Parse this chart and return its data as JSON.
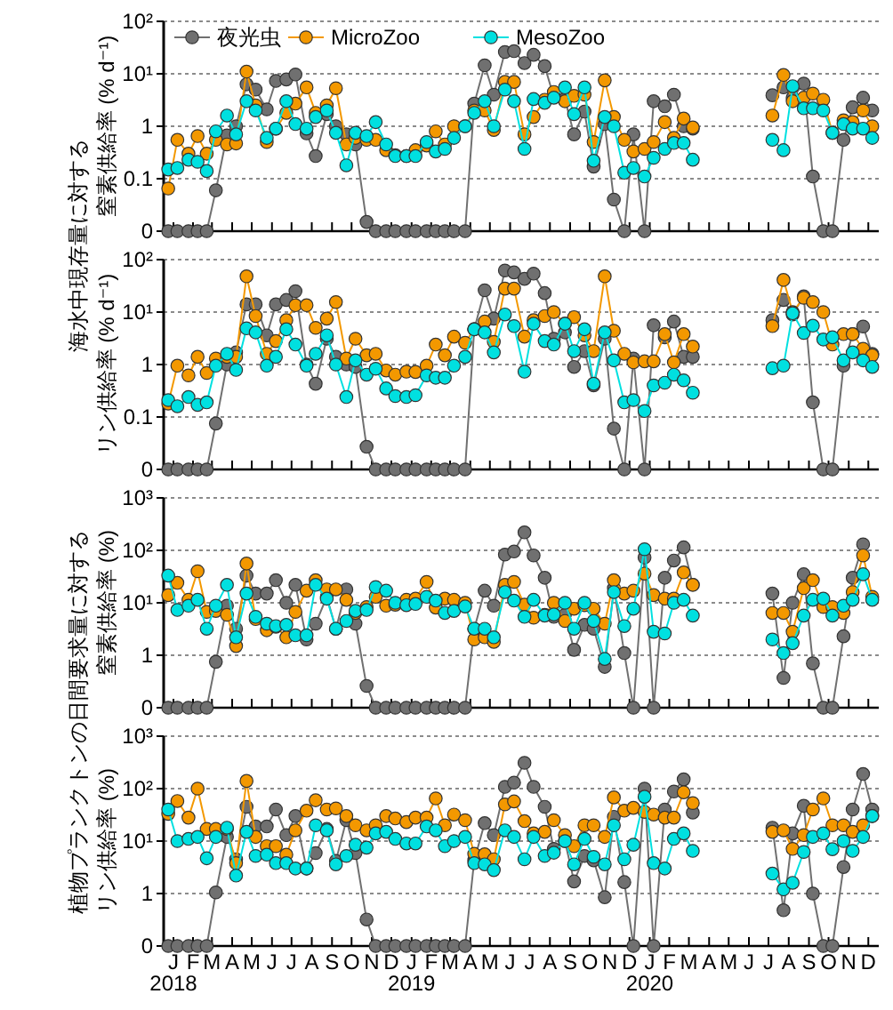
{
  "chart_data": [
    {
      "type": "line",
      "ylabel": "窒素供給率 (% d⁻¹)",
      "annotations": [
        "海水中現存量に対する"
      ],
      "log": true,
      "grid": "y",
      "legend": "top left",
      "marker": "circle",
      "line_style": "solid",
      "tick_labels": "y",
      "xlim": [
        "2018-01-01",
        "2021-01-01"
      ],
      "ylim": [
        0.01,
        100
      ],
      "yticks": [
        {
          "value": 0.01,
          "label": "0"
        },
        {
          "value": 0.1,
          "label": "0.1"
        },
        {
          "value": 1,
          "label": "1"
        },
        {
          "value": 10,
          "label": "10¹"
        },
        {
          "value": 100,
          "label": "10²"
        }
      ],
      "xticks": [
        {
          "value": "2018-01-16",
          "label": null
        },
        {
          "value": "2018-02-15",
          "label": null
        },
        {
          "value": "2018-03-16",
          "label": null
        },
        {
          "value": "2018-04-16",
          "label": null
        },
        {
          "value": "2018-05-16",
          "label": null
        },
        {
          "value": "2018-06-16",
          "label": null
        },
        {
          "value": "2018-07-16",
          "label": null
        },
        {
          "value": "2018-08-16",
          "label": null
        },
        {
          "value": "2018-09-16",
          "label": null
        },
        {
          "value": "2018-10-16",
          "label": null
        },
        {
          "value": "2018-11-16",
          "label": null
        },
        {
          "value": "2018-12-16",
          "label": null
        },
        {
          "value": "2019-01-16",
          "label": null
        },
        {
          "value": "2019-02-15",
          "label": null
        },
        {
          "value": "2019-03-16",
          "label": null
        },
        {
          "value": "2019-04-16",
          "label": null
        },
        {
          "value": "2019-05-16",
          "label": null
        },
        {
          "value": "2019-06-16",
          "label": null
        },
        {
          "value": "2019-07-16",
          "label": null
        },
        {
          "value": "2019-08-16",
          "label": null
        },
        {
          "value": "2019-09-16",
          "label": null
        },
        {
          "value": "2019-10-16",
          "label": null
        },
        {
          "value": "2019-11-16",
          "label": null
        },
        {
          "value": "2019-12-16",
          "label": null
        },
        {
          "value": "2020-01-16",
          "label": null
        },
        {
          "value": "2020-02-15",
          "label": null
        },
        {
          "value": "2020-03-16",
          "label": null
        },
        {
          "value": "2020-04-16",
          "label": null
        },
        {
          "value": "2020-05-16",
          "label": null
        },
        {
          "value": "2020-06-16",
          "label": null
        },
        {
          "value": "2020-07-16",
          "label": null
        },
        {
          "value": "2020-08-16",
          "label": null
        },
        {
          "value": "2020-09-16",
          "label": null
        },
        {
          "value": "2020-10-16",
          "label": null
        },
        {
          "value": "2020-11-16",
          "label": null
        },
        {
          "value": "2020-12-16",
          "label": null
        }
      ],
      "x": [
        "2018-01-08",
        "2018-01-22",
        "2018-02-08",
        "2018-02-22",
        "2018-03-08",
        "2018-03-22",
        "2018-04-08",
        "2018-04-22",
        "2018-05-08",
        "2018-05-22",
        "2018-06-08",
        "2018-06-22",
        "2018-07-08",
        "2018-07-22",
        "2018-08-08",
        "2018-08-22",
        "2018-09-08",
        "2018-09-22",
        "2018-10-08",
        "2018-10-22",
        "2018-11-08",
        "2018-11-22",
        "2018-12-08",
        "2018-12-22",
        "2019-01-08",
        "2019-01-22",
        "2019-02-08",
        "2019-02-22",
        "2019-03-08",
        "2019-03-22",
        "2019-04-08",
        "2019-04-22",
        "2019-05-08",
        "2019-05-22",
        "2019-06-08",
        "2019-06-22",
        "2019-07-08",
        "2019-07-22",
        "2019-08-08",
        "2019-08-22",
        "2019-09-08",
        "2019-09-22",
        "2019-10-08",
        "2019-10-22",
        "2019-11-08",
        "2019-11-22",
        "2019-12-08",
        "2019-12-22",
        "2020-01-08",
        "2020-01-22",
        "2020-02-08",
        "2020-02-22",
        "2020-03-08",
        "2020-03-22",
        "2020-05-15",
        "2020-07-22",
        "2020-08-08",
        "2020-08-22",
        "2020-09-08",
        "2020-09-22",
        "2020-10-08",
        "2020-10-22",
        "2020-11-08",
        "2020-11-22",
        "2020-12-08",
        "2020-12-22"
      ],
      "series": [
        {
          "name": "夜光虫",
          "color": "#707070",
          "values": [
            0.01,
            0.01,
            0.01,
            0.01,
            0.01,
            0.06,
            0.67,
            1,
            6.3,
            5,
            2.1,
            7.3,
            7.8,
            9.7,
            0.73,
            0.27,
            1.7,
            1,
            0.7,
            0.45,
            0.015,
            0.01,
            0.01,
            0.01,
            0.01,
            0.01,
            0.01,
            0.01,
            0.01,
            0.01,
            0.01,
            2.7,
            14.5,
            4,
            26,
            27,
            16,
            23,
            14,
            3.6,
            3.3,
            0.7,
            1.9,
            0.17,
            1.1,
            0.04,
            0.01,
            0.7,
            0.01,
            3,
            2.4,
            4,
            1,
            0.9,
            null,
            3.9,
            5.5,
            3.5,
            6.5,
            0.11,
            0.01,
            0.01,
            0.55,
            2.3,
            3.5,
            2
          ]
        },
        {
          "name": "MicroZoo",
          "color": "#f39800",
          "values": [
            0.065,
            0.55,
            0.3,
            0.65,
            0.3,
            0.55,
            0.45,
            0.47,
            11,
            2.5,
            0.5,
            0.9,
            1.8,
            2.7,
            5.5,
            1.8,
            2.5,
            5.3,
            0.45,
            0.6,
            0.55,
            0.55,
            0.35,
            0.28,
            0.27,
            0.35,
            0.43,
            0.8,
            0.45,
            1,
            1,
            2,
            2,
            0.85,
            7,
            7,
            0.7,
            1.5,
            3.2,
            4.5,
            3,
            3.8,
            4,
            0.5,
            7.5,
            1.5,
            0.55,
            0.33,
            0.37,
            0.5,
            1.2,
            0.6,
            1.4,
            0.95,
            null,
            1.6,
            9.5,
            3,
            3.5,
            4.2,
            3.2,
            0.75,
            1.3,
            1.2,
            2,
            1
          ]
        },
        {
          "name": "MesoZoo",
          "color": "#00e0e0",
          "values": [
            0.15,
            0.16,
            0.23,
            0.21,
            0.14,
            0.8,
            1.6,
            0.7,
            3,
            2,
            0.6,
            0.9,
            3,
            1.1,
            0.9,
            1.5,
            2,
            0.75,
            0.18,
            0.75,
            0.65,
            1.2,
            0.45,
            0.27,
            0.27,
            0.27,
            0.5,
            0.33,
            0.37,
            0.6,
            1,
            1.8,
            3,
            1,
            5,
            3,
            0.37,
            3.3,
            2.8,
            3.5,
            5.5,
            1.7,
            5.5,
            0.22,
            1.5,
            1,
            0.13,
            0.16,
            0.11,
            0.25,
            0.37,
            0.48,
            0.48,
            0.23,
            null,
            0.55,
            0.35,
            5.8,
            2.2,
            2.2,
            2,
            0.75,
            1.1,
            0.9,
            0.9,
            0.6
          ]
        }
      ]
    },
    {
      "type": "line",
      "ylabel": "リン供給率 (% d⁻¹)",
      "log": true,
      "grid": "y",
      "marker": "circle",
      "line_style": "solid",
      "tick_labels": "y",
      "xlim": [
        "2018-01-01",
        "2021-01-01"
      ],
      "ylim": [
        0.01,
        100
      ],
      "yticks": [
        {
          "value": 0.01,
          "label": "0"
        },
        {
          "value": 0.1,
          "label": "0.1"
        },
        {
          "value": 1,
          "label": "1"
        },
        {
          "value": 10,
          "label": "10¹"
        },
        {
          "value": 100,
          "label": "10²"
        }
      ],
      "xticks": [
        {
          "value": "2018-01-16",
          "label": null
        },
        {
          "value": "2018-02-15",
          "label": null
        },
        {
          "value": "2018-03-16",
          "label": null
        },
        {
          "value": "2018-04-16",
          "label": null
        },
        {
          "value": "2018-05-16",
          "label": null
        },
        {
          "value": "2018-06-16",
          "label": null
        },
        {
          "value": "2018-07-16",
          "label": null
        },
        {
          "value": "2018-08-16",
          "label": null
        },
        {
          "value": "2018-09-16",
          "label": null
        },
        {
          "value": "2018-10-16",
          "label": null
        },
        {
          "value": "2018-11-16",
          "label": null
        },
        {
          "value": "2018-12-16",
          "label": null
        },
        {
          "value": "2019-01-16",
          "label": null
        },
        {
          "value": "2019-02-15",
          "label": null
        },
        {
          "value": "2019-03-16",
          "label": null
        },
        {
          "value": "2019-04-16",
          "label": null
        },
        {
          "value": "2019-05-16",
          "label": null
        },
        {
          "value": "2019-06-16",
          "label": null
        },
        {
          "value": "2019-07-16",
          "label": null
        },
        {
          "value": "2019-08-16",
          "label": null
        },
        {
          "value": "2019-09-16",
          "label": null
        },
        {
          "value": "2019-10-16",
          "label": null
        },
        {
          "value": "2019-11-16",
          "label": null
        },
        {
          "value": "2019-12-16",
          "label": null
        },
        {
          "value": "2020-01-16",
          "label": null
        },
        {
          "value": "2020-02-15",
          "label": null
        },
        {
          "value": "2020-03-16",
          "label": null
        },
        {
          "value": "2020-04-16",
          "label": null
        },
        {
          "value": "2020-05-16",
          "label": null
        },
        {
          "value": "2020-06-16",
          "label": null
        },
        {
          "value": "2020-07-16",
          "label": null
        },
        {
          "value": "2020-08-16",
          "label": null
        },
        {
          "value": "2020-09-16",
          "label": null
        },
        {
          "value": "2020-10-16",
          "label": null
        },
        {
          "value": "2020-11-16",
          "label": null
        },
        {
          "value": "2020-12-16",
          "label": null
        }
      ],
      "x": [
        "2018-01-08",
        "2018-01-22",
        "2018-02-08",
        "2018-02-22",
        "2018-03-08",
        "2018-03-22",
        "2018-04-08",
        "2018-04-22",
        "2018-05-08",
        "2018-05-22",
        "2018-06-08",
        "2018-06-22",
        "2018-07-08",
        "2018-07-22",
        "2018-08-08",
        "2018-08-22",
        "2018-09-08",
        "2018-09-22",
        "2018-10-08",
        "2018-10-22",
        "2018-11-08",
        "2018-11-22",
        "2018-12-08",
        "2018-12-22",
        "2019-01-08",
        "2019-01-22",
        "2019-02-08",
        "2019-02-22",
        "2019-03-08",
        "2019-03-22",
        "2019-04-08",
        "2019-04-22",
        "2019-05-08",
        "2019-05-22",
        "2019-06-08",
        "2019-06-22",
        "2019-07-08",
        "2019-07-22",
        "2019-08-08",
        "2019-08-22",
        "2019-09-08",
        "2019-09-22",
        "2019-10-08",
        "2019-10-22",
        "2019-11-08",
        "2019-11-22",
        "2019-12-08",
        "2019-12-22",
        "2020-01-08",
        "2020-01-22",
        "2020-02-08",
        "2020-02-22",
        "2020-03-08",
        "2020-03-22",
        "2020-05-15",
        "2020-07-22",
        "2020-08-08",
        "2020-08-22",
        "2020-09-08",
        "2020-09-22",
        "2020-10-08",
        "2020-10-22",
        "2020-11-08",
        "2020-11-22",
        "2020-12-08",
        "2020-12-22"
      ],
      "series": [
        {
          "color": "#707070",
          "values": [
            0.01,
            0.01,
            0.01,
            0.01,
            0.01,
            0.075,
            1,
            1.7,
            14,
            14,
            3.6,
            14,
            17,
            25,
            1,
            0.43,
            3.1,
            1.4,
            1,
            0.9,
            0.027,
            0.01,
            0.01,
            0.01,
            0.01,
            0.01,
            0.01,
            0.01,
            0.01,
            0.01,
            0.01,
            4.7,
            26,
            7.5,
            62,
            57,
            43,
            54,
            23,
            3.1,
            4.1,
            0.9,
            1.8,
            0.4,
            3.1,
            0.06,
            0.01,
            1.3,
            0.01,
            5.6,
            3.3,
            6.6,
            1.4,
            1.4,
            null,
            7,
            17,
            9,
            20,
            0.19,
            0.01,
            0.01,
            0.95,
            3.8,
            5.3,
            1.6
          ]
        },
        {
          "color": "#f39800",
          "values": [
            0.18,
            0.95,
            0.62,
            1.4,
            0.69,
            1.3,
            1.4,
            1.4,
            48,
            8.4,
            1.6,
            2.8,
            7,
            13.5,
            13.5,
            5,
            7.5,
            15.5,
            1.3,
            3.1,
            1.5,
            1.6,
            0.77,
            0.64,
            0.73,
            0.72,
            0.95,
            2.4,
            1.5,
            3.4,
            2.6,
            4.7,
            6.6,
            2.7,
            28,
            28,
            3.4,
            7,
            8.4,
            10,
            6,
            8,
            3.6,
            1.8,
            48,
            4.4,
            1.6,
            1.1,
            1.15,
            1.15,
            3.8,
            1.1,
            3.8,
            2.2,
            null,
            5.4,
            41,
            10,
            18.7,
            15.5,
            10,
            2.4,
            3.8,
            3.8,
            2,
            1.5
          ]
        },
        {
          "color": "#00e0e0",
          "values": [
            0.21,
            0.16,
            0.24,
            0.17,
            0.19,
            0.95,
            1.6,
            0.79,
            4.9,
            4.1,
            0.95,
            1.4,
            4.7,
            2.4,
            0.95,
            1.6,
            3.6,
            1,
            0.24,
            1.2,
            0.64,
            0.83,
            0.35,
            0.25,
            0.24,
            0.26,
            0.62,
            0.56,
            0.56,
            0.95,
            1.4,
            4.7,
            4.1,
            1.7,
            9,
            5.4,
            0.73,
            6,
            2.8,
            2.4,
            6,
            1.8,
            4.7,
            0.43,
            4.1,
            1.2,
            0.19,
            0.21,
            0.13,
            0.4,
            0.45,
            0.64,
            0.5,
            0.29,
            null,
            0.85,
            0.95,
            9.5,
            4,
            5.5,
            3,
            3.3,
            1.2,
            1.7,
            1.2,
            0.9
          ]
        }
      ]
    },
    {
      "type": "line",
      "ylabel": "窒素供給率 (%)",
      "annotations": [
        "植物プランクトンの日間要求量に対する"
      ],
      "log": true,
      "grid": "y",
      "marker": "circle",
      "line_style": "solid",
      "tick_labels": "y",
      "xlim": [
        "2018-01-01",
        "2021-01-01"
      ],
      "ylim": [
        0.1,
        1000
      ],
      "yticks": [
        {
          "value": 0.1,
          "label": "0"
        },
        {
          "value": 1,
          "label": "1"
        },
        {
          "value": 10,
          "label": "10¹"
        },
        {
          "value": 100,
          "label": "10²"
        },
        {
          "value": 1000,
          "label": "10³"
        }
      ],
      "xticks": [
        {
          "value": "2018-01-16",
          "label": null
        },
        {
          "value": "2018-02-15",
          "label": null
        },
        {
          "value": "2018-03-16",
          "label": null
        },
        {
          "value": "2018-04-16",
          "label": null
        },
        {
          "value": "2018-05-16",
          "label": null
        },
        {
          "value": "2018-06-16",
          "label": null
        },
        {
          "value": "2018-07-16",
          "label": null
        },
        {
          "value": "2018-08-16",
          "label": null
        },
        {
          "value": "2018-09-16",
          "label": null
        },
        {
          "value": "2018-10-16",
          "label": null
        },
        {
          "value": "2018-11-16",
          "label": null
        },
        {
          "value": "2018-12-16",
          "label": null
        },
        {
          "value": "2019-01-16",
          "label": null
        },
        {
          "value": "2019-02-15",
          "label": null
        },
        {
          "value": "2019-03-16",
          "label": null
        },
        {
          "value": "2019-04-16",
          "label": null
        },
        {
          "value": "2019-05-16",
          "label": null
        },
        {
          "value": "2019-06-16",
          "label": null
        },
        {
          "value": "2019-07-16",
          "label": null
        },
        {
          "value": "2019-08-16",
          "label": null
        },
        {
          "value": "2019-09-16",
          "label": null
        },
        {
          "value": "2019-10-16",
          "label": null
        },
        {
          "value": "2019-11-16",
          "label": null
        },
        {
          "value": "2019-12-16",
          "label": null
        },
        {
          "value": "2020-01-16",
          "label": null
        },
        {
          "value": "2020-02-15",
          "label": null
        },
        {
          "value": "2020-03-16",
          "label": null
        },
        {
          "value": "2020-04-16",
          "label": null
        },
        {
          "value": "2020-05-16",
          "label": null
        },
        {
          "value": "2020-06-16",
          "label": null
        },
        {
          "value": "2020-07-16",
          "label": null
        },
        {
          "value": "2020-08-16",
          "label": null
        },
        {
          "value": "2020-09-16",
          "label": null
        },
        {
          "value": "2020-10-16",
          "label": null
        },
        {
          "value": "2020-11-16",
          "label": null
        },
        {
          "value": "2020-12-16",
          "label": null
        }
      ],
      "x": [
        "2018-01-08",
        "2018-01-22",
        "2018-02-08",
        "2018-02-22",
        "2018-03-08",
        "2018-03-22",
        "2018-04-08",
        "2018-04-22",
        "2018-05-08",
        "2018-05-22",
        "2018-06-08",
        "2018-06-22",
        "2018-07-08",
        "2018-07-22",
        "2018-08-08",
        "2018-08-22",
        "2018-09-08",
        "2018-09-22",
        "2018-10-08",
        "2018-10-22",
        "2018-11-08",
        "2018-11-22",
        "2018-12-08",
        "2018-12-22",
        "2019-01-08",
        "2019-01-22",
        "2019-02-08",
        "2019-02-22",
        "2019-03-08",
        "2019-03-22",
        "2019-04-08",
        "2019-04-22",
        "2019-05-08",
        "2019-05-22",
        "2019-06-08",
        "2019-06-22",
        "2019-07-08",
        "2019-07-22",
        "2019-08-08",
        "2019-08-22",
        "2019-09-08",
        "2019-09-22",
        "2019-10-08",
        "2019-10-22",
        "2019-11-08",
        "2019-11-22",
        "2019-12-08",
        "2019-12-22",
        "2020-01-08",
        "2020-01-22",
        "2020-02-08",
        "2020-02-22",
        "2020-03-08",
        "2020-03-22",
        "2020-05-15",
        "2020-07-22",
        "2020-08-08",
        "2020-08-22",
        "2020-09-08",
        "2020-09-22",
        "2020-10-08",
        "2020-10-22",
        "2020-11-08",
        "2020-11-22",
        "2020-12-08",
        "2020-12-22"
      ],
      "series": [
        {
          "color": "#707070",
          "values": [
            0.1,
            0.1,
            0.1,
            0.1,
            0.1,
            0.75,
            8.8,
            3.2,
            33,
            15,
            15,
            27,
            10,
            22,
            2,
            4,
            13,
            3.2,
            18,
            4,
            0.26,
            0.1,
            0.1,
            0.1,
            0.1,
            0.1,
            0.1,
            0.1,
            0.1,
            0.1,
            0.1,
            3.2,
            17,
            8.8,
            83,
            95,
            220,
            80,
            30,
            5.4,
            5.9,
            1.27,
            3.8,
            3.2,
            0.6,
            19,
            1.1,
            0.1,
            73,
            0.1,
            30,
            64,
            114,
            22,
            null,
            15,
            0.37,
            10,
            35,
            0.7,
            0.1,
            0.1,
            2.3,
            30,
            130,
            null
          ]
        },
        {
          "color": "#f39800",
          "values": [
            14,
            24,
            11.4,
            40,
            6.7,
            7,
            5.9,
            1.5,
            56,
            4.9,
            3,
            3.5,
            2.2,
            6.7,
            17,
            27,
            18,
            18,
            11.4,
            6.4,
            8.3,
            13,
            8.8,
            9.2,
            11.4,
            12,
            25,
            8.1,
            12,
            11.4,
            10,
            2,
            2.2,
            1.8,
            22,
            25,
            9.2,
            5.2,
            5.9,
            10,
            4.5,
            7.7,
            9,
            7.7,
            4,
            27,
            15,
            17,
            36,
            14,
            12,
            12,
            38,
            22,
            null,
            6.4,
            6.4,
            2.8,
            19,
            27,
            8.3,
            8.3,
            6.4,
            16,
            80,
            13
          ]
        },
        {
          "color": "#00e0e0",
          "values": [
            33,
            7.3,
            8.8,
            11.4,
            3.2,
            8.8,
            22,
            2.2,
            15,
            5.4,
            4,
            3.6,
            3.8,
            2.4,
            2.4,
            22,
            12,
            3.2,
            4.5,
            7,
            7.3,
            20,
            17,
            10,
            9,
            9.5,
            13,
            11,
            6.4,
            7,
            8.5,
            3.2,
            3.2,
            2.2,
            16,
            11,
            5.4,
            11.4,
            5.7,
            6,
            10,
            3.2,
            10,
            4.5,
            0.85,
            16,
            3.6,
            7.7,
            105,
            2.8,
            2.6,
            10,
            11.4,
            5.7,
            null,
            2,
            1.1,
            1.7,
            5.7,
            11.4,
            12,
            5.7,
            8.8,
            11.4,
            35,
            11.4
          ]
        }
      ]
    },
    {
      "type": "line",
      "ylabel": "リン供給率 (%)",
      "log": true,
      "grid": "y",
      "marker": "circle",
      "line_style": "solid",
      "xlim": [
        "2018-01-01",
        "2021-01-01"
      ],
      "ylim": [
        0.1,
        1000
      ],
      "yticks": [
        {
          "value": 0.1,
          "label": "0"
        },
        {
          "value": 1,
          "label": "1"
        },
        {
          "value": 10,
          "label": "10¹"
        },
        {
          "value": 100,
          "label": "10²"
        },
        {
          "value": 1000,
          "label": "10³"
        }
      ],
      "xticks": [
        {
          "value": "2018-01-16",
          "label": "J\n2018"
        },
        {
          "value": "2018-02-15",
          "label": "F"
        },
        {
          "value": "2018-03-16",
          "label": "M"
        },
        {
          "value": "2018-04-16",
          "label": "A"
        },
        {
          "value": "2018-05-16",
          "label": "M"
        },
        {
          "value": "2018-06-16",
          "label": "J"
        },
        {
          "value": "2018-07-16",
          "label": "J"
        },
        {
          "value": "2018-08-16",
          "label": "A"
        },
        {
          "value": "2018-09-16",
          "label": "S"
        },
        {
          "value": "2018-10-16",
          "label": "O"
        },
        {
          "value": "2018-11-16",
          "label": "N"
        },
        {
          "value": "2018-12-16",
          "label": "D"
        },
        {
          "value": "2019-01-16",
          "label": "J\n2019"
        },
        {
          "value": "2019-02-15",
          "label": "F"
        },
        {
          "value": "2019-03-16",
          "label": "M"
        },
        {
          "value": "2019-04-16",
          "label": "A"
        },
        {
          "value": "2019-05-16",
          "label": "M"
        },
        {
          "value": "2019-06-16",
          "label": "J"
        },
        {
          "value": "2019-07-16",
          "label": "J"
        },
        {
          "value": "2019-08-16",
          "label": "A"
        },
        {
          "value": "2019-09-16",
          "label": "S"
        },
        {
          "value": "2019-10-16",
          "label": "O"
        },
        {
          "value": "2019-11-16",
          "label": "N"
        },
        {
          "value": "2019-12-16",
          "label": "D"
        },
        {
          "value": "2020-01-16",
          "label": "J\n2020"
        },
        {
          "value": "2020-02-15",
          "label": "F"
        },
        {
          "value": "2020-03-16",
          "label": "M"
        },
        {
          "value": "2020-04-16",
          "label": "A"
        },
        {
          "value": "2020-05-16",
          "label": "M"
        },
        {
          "value": "2020-06-16",
          "label": "J"
        },
        {
          "value": "2020-07-16",
          "label": "J"
        },
        {
          "value": "2020-08-16",
          "label": "A"
        },
        {
          "value": "2020-09-16",
          "label": "S"
        },
        {
          "value": "2020-10-16",
          "label": "O"
        },
        {
          "value": "2020-11-16",
          "label": "N"
        },
        {
          "value": "2020-12-16",
          "label": "D"
        }
      ],
      "x": [
        "2018-01-08",
        "2018-01-22",
        "2018-02-08",
        "2018-02-22",
        "2018-03-08",
        "2018-03-22",
        "2018-04-08",
        "2018-04-22",
        "2018-05-08",
        "2018-05-22",
        "2018-06-08",
        "2018-06-22",
        "2018-07-08",
        "2018-07-22",
        "2018-08-08",
        "2018-08-22",
        "2018-09-08",
        "2018-09-22",
        "2018-10-08",
        "2018-10-22",
        "2018-11-08",
        "2018-11-22",
        "2018-12-08",
        "2018-12-22",
        "2019-01-08",
        "2019-01-22",
        "2019-02-08",
        "2019-02-22",
        "2019-03-08",
        "2019-03-22",
        "2019-04-08",
        "2019-04-22",
        "2019-05-08",
        "2019-05-22",
        "2019-06-08",
        "2019-06-22",
        "2019-07-08",
        "2019-07-22",
        "2019-08-08",
        "2019-08-22",
        "2019-09-08",
        "2019-09-22",
        "2019-10-08",
        "2019-10-22",
        "2019-11-08",
        "2019-11-22",
        "2019-12-08",
        "2019-12-22",
        "2020-01-08",
        "2020-01-22",
        "2020-02-08",
        "2020-02-22",
        "2020-03-08",
        "2020-03-22",
        "2020-05-15",
        "2020-07-22",
        "2020-08-08",
        "2020-08-22",
        "2020-09-08",
        "2020-09-22",
        "2020-10-08",
        "2020-10-22",
        "2020-11-08",
        "2020-11-22",
        "2020-12-08",
        "2020-12-22"
      ],
      "series": [
        {
          "color": "#707070",
          "values": [
            0.1,
            0.1,
            0.1,
            0.1,
            0.1,
            1.05,
            12,
            4.5,
            45,
            19,
            19,
            40,
            13,
            30,
            3,
            5.9,
            17,
            4.2,
            25,
            5.9,
            0.32,
            0.1,
            0.1,
            0.1,
            0.1,
            0.1,
            0.1,
            0.1,
            0.1,
            0.1,
            0.1,
            4.3,
            22,
            13,
            108,
            130,
            310,
            108,
            45,
            7.1,
            10,
            1.7,
            5.2,
            4.3,
            0.85,
            29,
            1.65,
            0.1,
            100,
            0.1,
            40,
            88,
            150,
            35,
            null,
            18,
            0.48,
            14,
            47,
            1,
            0.1,
            0.1,
            3.2,
            40,
            190,
            40
          ]
        },
        {
          "color": "#f39800",
          "values": [
            33,
            58,
            28,
            100,
            17,
            17,
            17,
            3.8,
            140,
            12,
            8,
            8,
            5.5,
            16,
            38,
            60,
            40,
            42,
            30,
            20,
            16,
            20,
            30,
            27,
            23,
            28,
            28,
            65,
            20,
            32,
            25,
            5.7,
            5.6,
            4.5,
            50,
            57,
            24,
            14,
            15,
            25,
            13,
            8,
            20,
            20,
            12,
            68,
            38,
            43,
            36,
            32,
            28,
            28,
            85,
            53,
            null,
            15,
            16,
            7.1,
            13,
            40,
            65,
            20,
            20,
            15,
            20,
            30
          ]
        },
        {
          "color": "#00e0e0",
          "values": [
            40,
            10,
            11,
            12,
            4.7,
            12,
            18,
            2.2,
            15,
            5.2,
            5.5,
            3.8,
            3.8,
            3,
            3,
            20,
            16,
            3.6,
            5.2,
            8.5,
            7.5,
            14,
            15,
            11,
            9,
            9,
            19,
            16,
            8,
            10,
            12,
            3.8,
            3.6,
            2.8,
            16,
            12,
            4.5,
            12,
            5.2,
            6,
            10,
            3.6,
            11,
            5,
            3.6,
            20,
            4.5,
            8.5,
            70,
            3.8,
            3,
            11,
            14,
            6.5,
            null,
            2.4,
            1.2,
            1.6,
            6.2,
            12,
            14,
            7,
            10,
            6.5,
            12,
            30
          ]
        }
      ]
    }
  ]
}
